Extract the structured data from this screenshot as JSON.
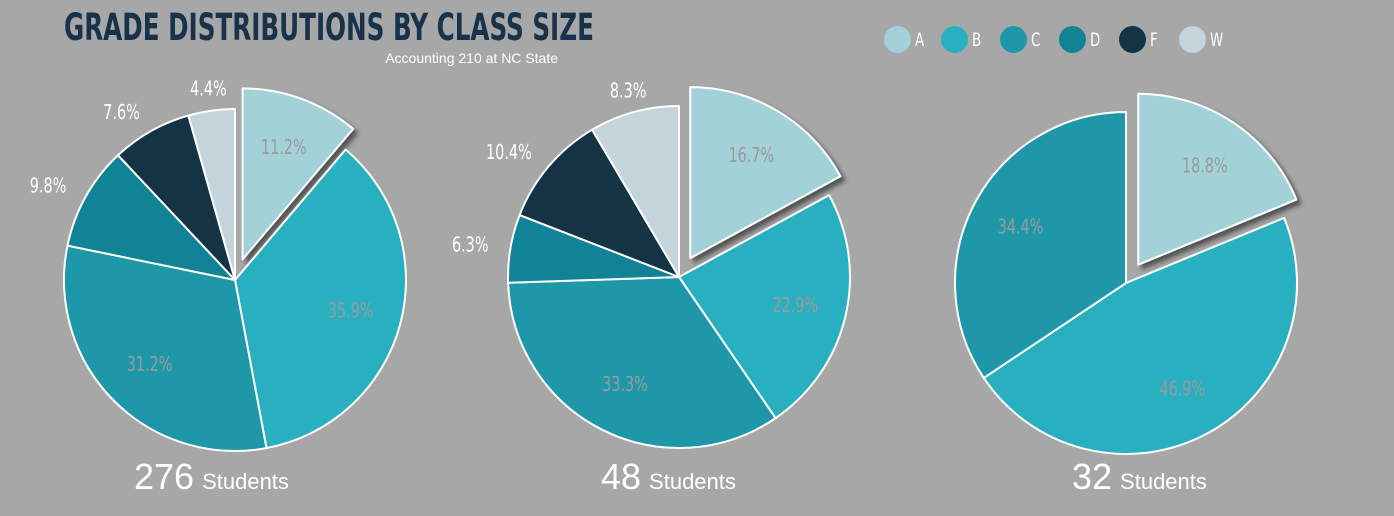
{
  "header": {
    "title": "GRADE DISTRIBUTIONS BY CLASS SIZE",
    "subtitle": "Accounting 210 at NC State"
  },
  "colors": {
    "A": "#a2d2d8",
    "B": "#28b0c1",
    "C": "#1e98a9",
    "D": "#128396",
    "F": "#143446",
    "W": "#c3d5db",
    "label": "#9a9a9a",
    "outer_label": "#ffffff",
    "background": "#a7a7a7"
  },
  "legend": [
    "A",
    "B",
    "C",
    "D",
    "F",
    "W"
  ],
  "chart_data": [
    {
      "type": "pie",
      "title": "",
      "count": "276",
      "unit": "Students",
      "slices": [
        {
          "grade": "A",
          "value": 11.2,
          "label": "11.2%"
        },
        {
          "grade": "B",
          "value": 35.9,
          "label": "35.9%"
        },
        {
          "grade": "C",
          "value": 31.2,
          "label": "31.2%"
        },
        {
          "grade": "D",
          "value": 9.8,
          "label": "9.8%"
        },
        {
          "grade": "F",
          "value": 7.6,
          "label": "7.6%"
        },
        {
          "grade": "W",
          "value": 4.4,
          "label": "4.4%"
        }
      ]
    },
    {
      "type": "pie",
      "title": "",
      "count": "48",
      "unit": "Students",
      "slices": [
        {
          "grade": "A",
          "value": 16.7,
          "label": "16.7%"
        },
        {
          "grade": "B",
          "value": 22.9,
          "label": "22.9%"
        },
        {
          "grade": "C",
          "value": 33.3,
          "label": "33.3%"
        },
        {
          "grade": "D",
          "value": 6.3,
          "label": "6.3%"
        },
        {
          "grade": "F",
          "value": 10.4,
          "label": "10.4%"
        },
        {
          "grade": "W",
          "value": 8.3,
          "label": "8.3%"
        }
      ]
    },
    {
      "type": "pie",
      "title": "",
      "count": "32",
      "unit": "Students",
      "slices": [
        {
          "grade": "A",
          "value": 18.8,
          "label": "18.8%"
        },
        {
          "grade": "B",
          "value": 46.9,
          "label": "46.9%"
        },
        {
          "grade": "C",
          "value": 34.4,
          "label": "34.4%"
        }
      ]
    }
  ]
}
